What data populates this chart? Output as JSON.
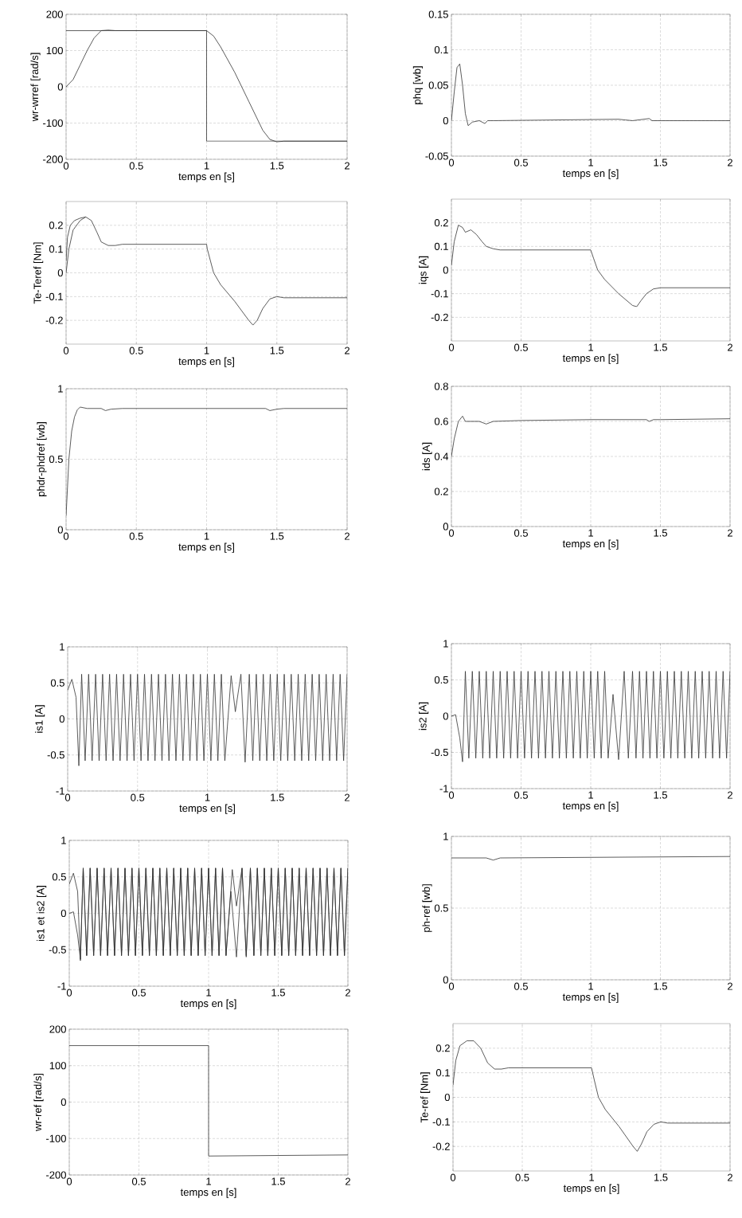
{
  "chart_data": [
    {
      "type": "line",
      "xlabel": "temps en [s]",
      "ylabel": "wr-wrref [rad/s]",
      "xlim": [
        0,
        2
      ],
      "xticks": [
        0,
        0.5,
        1,
        1.5,
        2
      ],
      "ylim": [
        -200,
        200
      ],
      "yticks": [
        -200,
        -100,
        0,
        100,
        200
      ],
      "grid": true,
      "series": [
        {
          "color": "#333333",
          "x": [
            0,
            1,
            1,
            2
          ],
          "values": [
            155,
            155,
            -150,
            -150
          ]
        },
        {
          "color": "#333333",
          "x": [
            0,
            0.05,
            0.1,
            0.15,
            0.2,
            0.25,
            0.3,
            0.35,
            1,
            1.05,
            1.1,
            1.2,
            1.3,
            1.4,
            1.45,
            1.5,
            1.55,
            2
          ],
          "values": [
            0,
            20,
            60,
            100,
            135,
            155,
            157,
            155,
            155,
            140,
            110,
            40,
            -40,
            -120,
            -145,
            -152,
            -150,
            -150
          ]
        }
      ]
    },
    {
      "type": "line",
      "xlabel": "temps en [s]",
      "ylabel": "phq  [wb]",
      "xlim": [
        0,
        2
      ],
      "xticks": [
        0,
        0.5,
        1,
        1.5,
        2
      ],
      "ylim": [
        -0.05,
        0.15
      ],
      "yticks": [
        -0.05,
        0,
        0.05,
        0.1,
        0.15
      ],
      "grid": true,
      "series": [
        {
          "color": "#333333",
          "x": [
            0,
            0.02,
            0.04,
            0.06,
            0.08,
            0.1,
            0.12,
            0.15,
            0.2,
            0.24,
            0.26,
            0.3,
            1.2,
            1.25,
            1.3,
            1.42,
            1.44,
            1.46,
            2
          ],
          "values": [
            0,
            0.04,
            0.075,
            0.08,
            0.05,
            0.01,
            -0.007,
            -0.002,
            0,
            -0.004,
            0,
            0,
            0.002,
            0.001,
            0,
            0.003,
            0,
            0,
            0
          ]
        }
      ]
    },
    {
      "type": "line",
      "xlabel": "temps en [s]",
      "ylabel": "Te-Teref [Nm]",
      "xlim": [
        0,
        2
      ],
      "xticks": [
        0,
        0.5,
        1,
        1.5,
        2
      ],
      "ylim": [
        -0.3,
        0.3
      ],
      "yticks": [
        -0.2,
        -0.1,
        0,
        0.1,
        0.2
      ],
      "grid": true,
      "series": [
        {
          "color": "#333333",
          "x": [
            0,
            0.02,
            0.05,
            0.1,
            0.14,
            0.18,
            0.22,
            0.25,
            0.3,
            0.35,
            0.4,
            1,
            1.005,
            1.05,
            1.1,
            1.2,
            1.3,
            1.33,
            1.36,
            1.4,
            1.45,
            1.5,
            1.55,
            2
          ],
          "values": [
            0,
            0.1,
            0.18,
            0.22,
            0.235,
            0.22,
            0.17,
            0.13,
            0.115,
            0.115,
            0.12,
            0.12,
            0.1,
            0,
            -0.05,
            -0.12,
            -0.2,
            -0.22,
            -0.2,
            -0.15,
            -0.11,
            -0.1,
            -0.105,
            -0.105
          ]
        },
        {
          "color": "#333333",
          "x": [
            0,
            0.01,
            0.03,
            0.06,
            0.1,
            0.14
          ],
          "values": [
            0.05,
            0.15,
            0.2,
            0.22,
            0.23,
            0.235
          ]
        }
      ]
    },
    {
      "type": "line",
      "xlabel": "temps en [s]",
      "ylabel": "iqs  [A]",
      "xlim": [
        0,
        2
      ],
      "xticks": [
        0,
        0.5,
        1,
        1.5,
        2
      ],
      "ylim": [
        -0.3,
        0.3
      ],
      "yticks": [
        -0.2,
        -0.1,
        0,
        0.1,
        0.2
      ],
      "grid": true,
      "series": [
        {
          "color": "#333333",
          "x": [
            0,
            0.02,
            0.05,
            0.08,
            0.1,
            0.14,
            0.18,
            0.22,
            0.25,
            0.3,
            0.35,
            1,
            1.02,
            1.05,
            1.1,
            1.2,
            1.3,
            1.33,
            1.36,
            1.4,
            1.45,
            1.5,
            1.55,
            2
          ],
          "values": [
            0.02,
            0.12,
            0.19,
            0.18,
            0.16,
            0.17,
            0.15,
            0.12,
            0.1,
            0.09,
            0.085,
            0.085,
            0.05,
            0,
            -0.04,
            -0.1,
            -0.15,
            -0.155,
            -0.13,
            -0.1,
            -0.08,
            -0.075,
            -0.075,
            -0.075
          ]
        }
      ]
    },
    {
      "type": "line",
      "xlabel": "temps en [s]",
      "ylabel": "phdr-phdref [wb]",
      "xlim": [
        0,
        2
      ],
      "xticks": [
        0,
        0.5,
        1,
        1.5,
        2
      ],
      "ylim": [
        0,
        1
      ],
      "yticks": [
        0,
        0.5,
        1
      ],
      "grid": true,
      "series": [
        {
          "color": "#333333",
          "x": [
            0,
            0.01,
            0.02,
            0.04,
            0.06,
            0.08,
            0.1,
            0.15,
            0.2,
            0.25,
            0.28,
            0.32,
            0.4,
            1,
            1.42,
            1.45,
            1.5,
            1.55,
            2
          ],
          "values": [
            0.1,
            0.3,
            0.5,
            0.7,
            0.8,
            0.85,
            0.87,
            0.86,
            0.86,
            0.86,
            0.845,
            0.855,
            0.86,
            0.86,
            0.86,
            0.845,
            0.855,
            0.86,
            0.86
          ]
        }
      ]
    },
    {
      "type": "line",
      "xlabel": "temps en [s]",
      "ylabel": "ids  [A]",
      "xlim": [
        0,
        2
      ],
      "xticks": [
        0,
        0.5,
        1,
        1.5,
        2
      ],
      "ylim": [
        0,
        0.8
      ],
      "yticks": [
        0,
        0.2,
        0.4,
        0.6,
        0.8
      ],
      "grid": true,
      "series": [
        {
          "color": "#333333",
          "x": [
            0,
            0.02,
            0.05,
            0.08,
            0.1,
            0.2,
            0.25,
            0.3,
            0.5,
            1,
            1.4,
            1.42,
            1.45,
            1.5,
            2
          ],
          "values": [
            0.4,
            0.5,
            0.6,
            0.63,
            0.6,
            0.6,
            0.585,
            0.6,
            0.605,
            0.61,
            0.61,
            0.6,
            0.61,
            0.61,
            0.615
          ]
        }
      ]
    },
    {
      "type": "line",
      "xlabel": "temps en [s]",
      "ylabel": "is1  [A]",
      "xlim": [
        0,
        2
      ],
      "xticks": [
        0,
        0.5,
        1,
        1.5,
        2
      ],
      "ylim": [
        -1,
        1
      ],
      "yticks": [
        -1,
        -0.5,
        0,
        0.5,
        1
      ],
      "grid": true,
      "series": [
        {
          "color": "#333333",
          "x": [
            0,
            0.03,
            0.06,
            0.08,
            0.1,
            0.125,
            0.15,
            0.175,
            0.2,
            0.225,
            0.25,
            0.275,
            0.3,
            0.325,
            0.35,
            0.375,
            0.4,
            0.425,
            0.45,
            0.475,
            0.5,
            0.525,
            0.55,
            0.575,
            0.6,
            0.625,
            0.65,
            0.675,
            0.7,
            0.725,
            0.75,
            0.775,
            0.8,
            0.825,
            0.85,
            0.875,
            0.9,
            0.925,
            0.95,
            0.975,
            1,
            1.025,
            1.05,
            1.075,
            1.1,
            1.125,
            1.17,
            1.2,
            1.24,
            1.27,
            1.3,
            1.325,
            1.35,
            1.375,
            1.4,
            1.425,
            1.45,
            1.475,
            1.5,
            1.525,
            1.55,
            1.575,
            1.6,
            1.625,
            1.65,
            1.675,
            1.7,
            1.725,
            1.75,
            1.775,
            1.8,
            1.825,
            1.85,
            1.875,
            1.9,
            1.925,
            1.95,
            1.975,
            2
          ],
          "values": [
            0.4,
            0.55,
            0.3,
            -0.65,
            0.62,
            -0.58,
            0.62,
            -0.58,
            0.62,
            -0.58,
            0.62,
            -0.58,
            0.62,
            -0.58,
            0.62,
            -0.58,
            0.62,
            -0.58,
            0.62,
            -0.58,
            0.62,
            -0.58,
            0.62,
            -0.58,
            0.62,
            -0.58,
            0.62,
            -0.58,
            0.62,
            -0.58,
            0.62,
            -0.58,
            0.62,
            -0.58,
            0.62,
            -0.58,
            0.62,
            -0.58,
            0.62,
            -0.58,
            0.62,
            -0.58,
            0.62,
            -0.58,
            0.62,
            -0.58,
            0.6,
            0.1,
            0.62,
            -0.6,
            0.62,
            -0.58,
            0.62,
            -0.58,
            0.62,
            -0.58,
            0.62,
            -0.58,
            0.62,
            -0.58,
            0.62,
            -0.58,
            0.62,
            -0.58,
            0.62,
            -0.58,
            0.62,
            -0.58,
            0.62,
            -0.58,
            0.62,
            -0.58,
            0.62,
            -0.58,
            0.62,
            -0.58,
            0.62,
            -0.58,
            0.62
          ]
        }
      ]
    },
    {
      "type": "line",
      "xlabel": "temps en [s]",
      "ylabel": "is2  [A]",
      "xlim": [
        0,
        2
      ],
      "xticks": [
        0,
        0.5,
        1,
        1.5,
        2
      ],
      "ylim": [
        -1,
        1
      ],
      "yticks": [
        -1,
        -0.5,
        0,
        0.5,
        1
      ],
      "grid": true,
      "series": [
        {
          "color": "#333333",
          "x": [
            0,
            0.03,
            0.06,
            0.08,
            0.1,
            0.125,
            0.15,
            0.175,
            0.2,
            0.225,
            0.25,
            0.275,
            0.3,
            0.325,
            0.35,
            0.375,
            0.4,
            0.425,
            0.45,
            0.475,
            0.5,
            0.525,
            0.55,
            0.575,
            0.6,
            0.625,
            0.65,
            0.675,
            0.7,
            0.725,
            0.75,
            0.775,
            0.8,
            0.825,
            0.85,
            0.875,
            0.9,
            0.925,
            0.95,
            0.975,
            1,
            1.025,
            1.05,
            1.075,
            1.1,
            1.125,
            1.16,
            1.2,
            1.24,
            1.27,
            1.3,
            1.325,
            1.35,
            1.375,
            1.4,
            1.425,
            1.45,
            1.475,
            1.5,
            1.525,
            1.55,
            1.575,
            1.6,
            1.625,
            1.65,
            1.675,
            1.7,
            1.725,
            1.75,
            1.775,
            1.8,
            1.825,
            1.85,
            1.875,
            1.9,
            1.925,
            1.95,
            1.975,
            2
          ],
          "values": [
            0,
            0.02,
            -0.3,
            -0.63,
            0.62,
            -0.58,
            0.62,
            -0.58,
            0.62,
            -0.58,
            0.62,
            -0.58,
            0.62,
            -0.58,
            0.62,
            -0.58,
            0.62,
            -0.58,
            0.62,
            -0.58,
            0.62,
            -0.58,
            0.62,
            -0.58,
            0.62,
            -0.58,
            0.62,
            -0.58,
            0.62,
            -0.58,
            0.62,
            -0.58,
            0.62,
            -0.58,
            0.62,
            -0.58,
            0.62,
            -0.58,
            0.62,
            -0.58,
            0.62,
            -0.58,
            0.62,
            -0.58,
            0.62,
            -0.58,
            0.3,
            -0.6,
            0.62,
            -0.58,
            0.62,
            -0.58,
            0.62,
            -0.58,
            0.62,
            -0.58,
            0.62,
            -0.58,
            0.62,
            -0.58,
            0.62,
            -0.58,
            0.62,
            -0.58,
            0.62,
            -0.58,
            0.62,
            -0.58,
            0.62,
            -0.58,
            0.62,
            -0.58,
            0.62,
            -0.58,
            0.62,
            -0.58,
            0.62,
            -0.58,
            0.62
          ]
        }
      ]
    },
    {
      "type": "line",
      "xlabel": "temps en [s]",
      "ylabel": "is1 et is2 [A]",
      "xlim": [
        0,
        2
      ],
      "xticks": [
        0,
        0.5,
        1,
        1.5,
        2
      ],
      "ylim": [
        -1,
        1
      ],
      "yticks": [
        -1,
        -0.5,
        0,
        0.5,
        1
      ],
      "grid": true,
      "series": [
        {
          "color": "#333333",
          "x": [
            0,
            0.03,
            0.06,
            0.08,
            0.1,
            0.125,
            0.15,
            0.175,
            0.2,
            0.225,
            0.25,
            0.275,
            0.3,
            0.325,
            0.35,
            0.375,
            0.4,
            0.425,
            0.45,
            0.475,
            0.5,
            0.525,
            0.55,
            0.575,
            0.6,
            0.625,
            0.65,
            0.675,
            0.7,
            0.725,
            0.75,
            0.775,
            0.8,
            0.825,
            0.85,
            0.875,
            0.9,
            0.925,
            0.95,
            0.975,
            1,
            1.025,
            1.05,
            1.075,
            1.1,
            1.125,
            1.17,
            1.2,
            1.24,
            1.27,
            1.3,
            1.325,
            1.35,
            1.375,
            1.4,
            1.425,
            1.45,
            1.475,
            1.5,
            1.525,
            1.55,
            1.575,
            1.6,
            1.625,
            1.65,
            1.675,
            1.7,
            1.725,
            1.75,
            1.775,
            1.8,
            1.825,
            1.85,
            1.875,
            1.9,
            1.925,
            1.95,
            1.975,
            2
          ],
          "values": [
            0.4,
            0.55,
            0.3,
            -0.65,
            0.62,
            -0.58,
            0.62,
            -0.58,
            0.62,
            -0.58,
            0.62,
            -0.58,
            0.62,
            -0.58,
            0.62,
            -0.58,
            0.62,
            -0.58,
            0.62,
            -0.58,
            0.62,
            -0.58,
            0.62,
            -0.58,
            0.62,
            -0.58,
            0.62,
            -0.58,
            0.62,
            -0.58,
            0.62,
            -0.58,
            0.62,
            -0.58,
            0.62,
            -0.58,
            0.62,
            -0.58,
            0.62,
            -0.58,
            0.62,
            -0.58,
            0.62,
            -0.58,
            0.62,
            -0.58,
            0.6,
            0.1,
            0.62,
            -0.6,
            0.62,
            -0.58,
            0.62,
            -0.58,
            0.62,
            -0.58,
            0.62,
            -0.58,
            0.62,
            -0.58,
            0.62,
            -0.58,
            0.62,
            -0.58,
            0.62,
            -0.58,
            0.62,
            -0.58,
            0.62,
            -0.58,
            0.62,
            -0.58,
            0.62,
            -0.58,
            0.62,
            -0.58,
            0.62,
            -0.58,
            0.62
          ]
        },
        {
          "color": "#333333",
          "x": [
            0,
            0.03,
            0.06,
            0.08,
            0.1,
            0.125,
            0.15,
            0.175,
            0.2,
            0.225,
            0.25,
            0.275,
            0.3,
            0.325,
            0.35,
            0.375,
            0.4,
            0.425,
            0.45,
            0.475,
            0.5,
            0.525,
            0.55,
            0.575,
            0.6,
            0.625,
            0.65,
            0.675,
            0.7,
            0.725,
            0.75,
            0.775,
            0.8,
            0.825,
            0.85,
            0.875,
            0.9,
            0.925,
            0.95,
            0.975,
            1,
            1.025,
            1.05,
            1.075,
            1.1,
            1.125,
            1.16,
            1.2,
            1.24,
            1.27,
            1.3,
            1.325,
            1.35,
            1.375,
            1.4,
            1.425,
            1.45,
            1.475,
            1.5,
            1.525,
            1.55,
            1.575,
            1.6,
            1.625,
            1.65,
            1.675,
            1.7,
            1.725,
            1.75,
            1.775,
            1.8,
            1.825,
            1.85,
            1.875,
            1.9,
            1.925,
            1.95,
            1.975,
            2
          ],
          "values": [
            0,
            0.02,
            -0.3,
            -0.63,
            0.62,
            -0.58,
            0.62,
            -0.58,
            0.62,
            -0.58,
            0.62,
            -0.58,
            0.62,
            -0.58,
            0.62,
            -0.58,
            0.62,
            -0.58,
            0.62,
            -0.58,
            0.62,
            -0.58,
            0.62,
            -0.58,
            0.62,
            -0.58,
            0.62,
            -0.58,
            0.62,
            -0.58,
            0.62,
            -0.58,
            0.62,
            -0.58,
            0.62,
            -0.58,
            0.62,
            -0.58,
            0.62,
            -0.58,
            0.62,
            -0.58,
            0.62,
            -0.58,
            0.62,
            -0.58,
            0.3,
            -0.6,
            0.62,
            -0.58,
            0.62,
            -0.58,
            0.62,
            -0.58,
            0.62,
            -0.58,
            0.62,
            -0.58,
            0.62,
            -0.58,
            0.62,
            -0.58,
            0.62,
            -0.58,
            0.62,
            -0.58,
            0.62,
            -0.58,
            0.62,
            -0.58,
            0.62,
            -0.58,
            0.62,
            -0.58,
            0.62,
            -0.58,
            0.62,
            -0.58,
            0.62
          ]
        }
      ]
    },
    {
      "type": "line",
      "xlabel": "temps en [s]",
      "ylabel": "ph-ref  [wb]",
      "xlim": [
        0,
        2
      ],
      "xticks": [
        0,
        0.5,
        1,
        1.5,
        2
      ],
      "ylim": [
        0,
        1
      ],
      "yticks": [
        0,
        0.5,
        1
      ],
      "grid": true,
      "series": [
        {
          "color": "#333333",
          "x": [
            0,
            0.25,
            0.3,
            0.35,
            2
          ],
          "values": [
            0.85,
            0.85,
            0.835,
            0.85,
            0.86
          ]
        }
      ]
    },
    {
      "type": "line",
      "xlabel": "temps en [s]",
      "ylabel": "wr-ref  [rad/s]",
      "xlim": [
        0,
        2
      ],
      "xticks": [
        0,
        0.5,
        1,
        1.5,
        2
      ],
      "ylim": [
        -200,
        200
      ],
      "yticks": [
        -200,
        -100,
        0,
        100,
        200
      ],
      "grid": true,
      "series": [
        {
          "color": "#333333",
          "x": [
            0,
            1,
            1,
            2
          ],
          "values": [
            155,
            155,
            -148,
            -145
          ]
        }
      ]
    },
    {
      "type": "line",
      "xlabel": "temps en [s]",
      "ylabel": "Te-ref  [Nm]",
      "xlim": [
        0,
        2
      ],
      "xticks": [
        0,
        0.5,
        1,
        1.5,
        2
      ],
      "ylim": [
        -0.3,
        0.3
      ],
      "yticks": [
        -0.2,
        -0.1,
        0,
        0.1,
        0.2
      ],
      "grid": true,
      "series": [
        {
          "color": "#333333",
          "x": [
            0,
            0.02,
            0.05,
            0.1,
            0.15,
            0.2,
            0.25,
            0.3,
            0.35,
            0.4,
            1,
            1.02,
            1.05,
            1.1,
            1.2,
            1.3,
            1.33,
            1.36,
            1.4,
            1.45,
            1.5,
            1.55,
            2
          ],
          "values": [
            0.05,
            0.15,
            0.21,
            0.23,
            0.23,
            0.2,
            0.14,
            0.115,
            0.115,
            0.12,
            0.12,
            0.07,
            0,
            -0.05,
            -0.12,
            -0.2,
            -0.22,
            -0.19,
            -0.14,
            -0.11,
            -0.1,
            -0.105,
            -0.105
          ]
        }
      ]
    }
  ]
}
